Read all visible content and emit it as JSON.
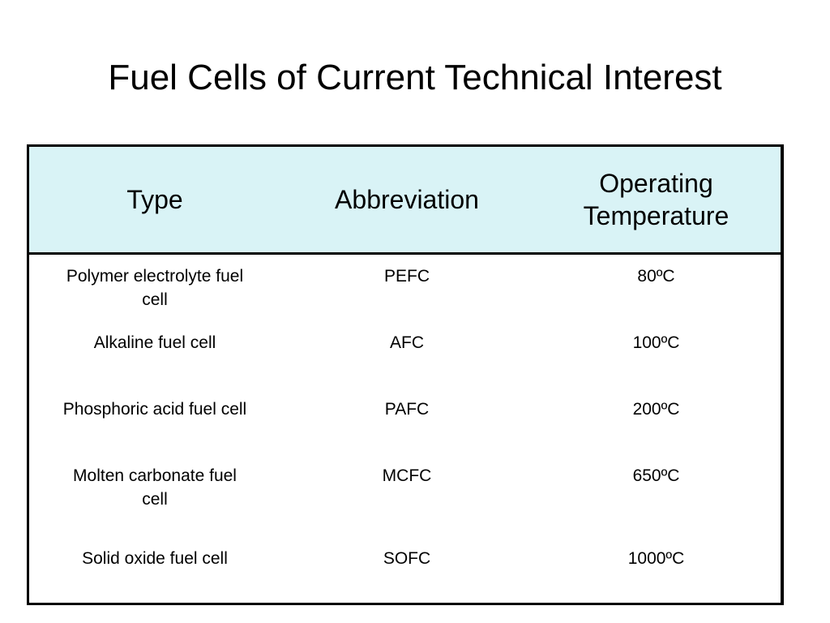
{
  "slide": {
    "title": "Fuel Cells of Current Technical Interest"
  },
  "table": {
    "headers": {
      "type": "Type",
      "abbreviation": "Abbreviation",
      "temperature_line1": "Operating",
      "temperature_line2": "Temperature"
    },
    "rows": [
      {
        "type_line1": "Polymer electrolyte fuel",
        "type_line2": "cell",
        "abbreviation": "PEFC",
        "temperature": "80ºC"
      },
      {
        "type_line1": "Alkaline fuel cell",
        "type_line2": "",
        "abbreviation": "AFC",
        "temperature": "100ºC"
      },
      {
        "type_line1": "Phosphoric acid fuel cell",
        "type_line2": "",
        "abbreviation": "PAFC",
        "temperature": "200ºC"
      },
      {
        "type_line1": "Molten carbonate fuel",
        "type_line2": "cell",
        "abbreviation": "MCFC",
        "temperature": "650ºC"
      },
      {
        "type_line1": "Solid oxide fuel cell",
        "type_line2": "",
        "abbreviation": "SOFC",
        "temperature": "1000ºC"
      }
    ],
    "colors": {
      "header_background": "#d9f3f6",
      "border": "#000000"
    }
  }
}
